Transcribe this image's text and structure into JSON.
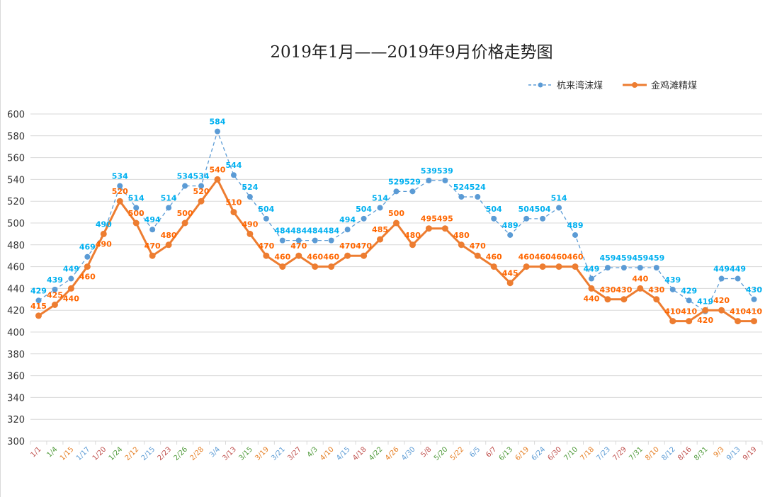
{
  "chart_data": {
    "type": "line",
    "title": "2019年1月——2019年9月价格走势图",
    "categories": [
      "1/1",
      "1/4",
      "1/15",
      "1/17",
      "1/20",
      "1/24",
      "2/12",
      "2/15",
      "2/23",
      "2/26",
      "2/28",
      "3/4",
      "3/13",
      "3/15",
      "3/19",
      "3/21",
      "3/27",
      "4/3",
      "4/10",
      "4/15",
      "4/18",
      "4/22",
      "4/26",
      "4/30",
      "5/8",
      "5/20",
      "5/22",
      "6/5",
      "6/7",
      "6/13",
      "6/19",
      "6/24",
      "6/30",
      "7/10",
      "7/18",
      "7/23",
      "7/29",
      "7/31",
      "8/10",
      "8/12",
      "8/16",
      "8/31",
      "9/3",
      "9/13",
      "9/19"
    ],
    "series": [
      {
        "name": "杭来湾沫煤",
        "color": "#5b9bd5",
        "label_color": "#00b0f0",
        "style": "dashed",
        "values": [
          429,
          439,
          449,
          469,
          490,
          534,
          514,
          494,
          514,
          534,
          534,
          584,
          544,
          524,
          504,
          484,
          484,
          484,
          484,
          494,
          504,
          514,
          529,
          529,
          539,
          539,
          524,
          524,
          504,
          489,
          504,
          504,
          514,
          489,
          449,
          459,
          459,
          459,
          459,
          439,
          429,
          419,
          449,
          449,
          430
        ]
      },
      {
        "name": "金鸡滩精煤",
        "color": "#ed7d31",
        "label_color": "#ff6600",
        "style": "solid",
        "values": [
          415,
          425,
          440,
          460,
          490,
          520,
          500,
          470,
          480,
          500,
          520,
          540,
          510,
          490,
          470,
          460,
          470,
          460,
          460,
          470,
          470,
          485,
          500,
          480,
          495,
          495,
          480,
          470,
          460,
          445,
          460,
          460,
          460,
          460,
          440,
          430,
          430,
          440,
          430,
          410,
          410,
          420,
          420,
          410,
          410
        ]
      }
    ],
    "ylim": [
      300,
      600
    ],
    "yticks": [
      300,
      320,
      340,
      360,
      380,
      400,
      420,
      440,
      460,
      480,
      500,
      520,
      540,
      560,
      580,
      600
    ],
    "grid": true,
    "legend": "top-right",
    "xlabel": "",
    "ylabel": ""
  }
}
